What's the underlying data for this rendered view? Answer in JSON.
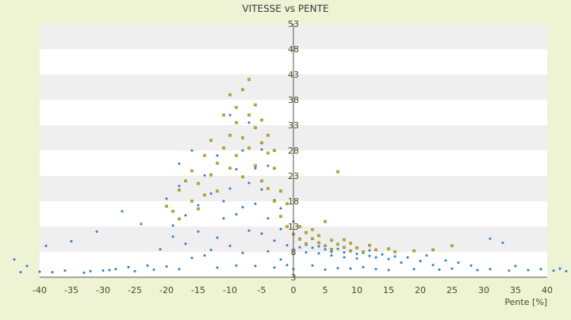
{
  "chart_data": {
    "type": "scatter",
    "title": "VITESSE vs PENTE",
    "xlabel": "Pente [%]",
    "ylabel": "",
    "xlim": [
      -40,
      40
    ],
    "ylim": [
      3,
      53
    ],
    "x_ticks": [
      -40,
      -35,
      -30,
      -25,
      -20,
      -15,
      -10,
      -5,
      0,
      5,
      10,
      15,
      20,
      25,
      30,
      35,
      40
    ],
    "y_ticks": [
      3,
      8,
      13,
      18,
      23,
      28,
      33,
      38,
      43,
      48,
      53
    ],
    "grid": "horizontal bands",
    "legend": "none",
    "colors": {
      "background": "#eef3d4",
      "plot_band_light": "#ffffff",
      "plot_band_dark": "#efefef",
      "series_blue": "#1e7fd6",
      "series_olive": "#c8b400",
      "axis": "#555555",
      "text": "#4a4a1a"
    },
    "series": [
      {
        "color": "#1e7fd6",
        "points": [
          [
            -44,
            6.5
          ],
          [
            -43,
            4.0
          ],
          [
            -42,
            5.2
          ],
          [
            -40,
            4.1
          ],
          [
            -39,
            9.2
          ],
          [
            -38,
            4.0
          ],
          [
            -36,
            4.3
          ],
          [
            -35,
            10.1
          ],
          [
            -33,
            3.9
          ],
          [
            -32,
            4.2
          ],
          [
            -31,
            12.0
          ],
          [
            -30,
            4.3
          ],
          [
            -29,
            4.4
          ],
          [
            -28,
            4.6
          ],
          [
            -27,
            16.0
          ],
          [
            -26,
            5.0
          ],
          [
            -25,
            4.2
          ],
          [
            -24,
            13.5
          ],
          [
            -23,
            5.3
          ],
          [
            -22,
            4.5
          ],
          [
            -21,
            8.5
          ],
          [
            -20,
            18.5
          ],
          [
            -20,
            5.1
          ],
          [
            -19,
            11.0
          ],
          [
            -19,
            13.2
          ],
          [
            -18,
            4.6
          ],
          [
            -18,
            21.0
          ],
          [
            -18,
            25.4
          ],
          [
            -17,
            15.2
          ],
          [
            -17,
            9.6
          ],
          [
            -16,
            6.8
          ],
          [
            -16,
            28.0
          ],
          [
            -15,
            17.2
          ],
          [
            -15,
            12.0
          ],
          [
            -14,
            23.1
          ],
          [
            -14,
            7.3
          ],
          [
            -13,
            8.4
          ],
          [
            -13,
            19.5
          ],
          [
            -12,
            10.8
          ],
          [
            -12,
            4.9
          ],
          [
            -12,
            27.0
          ],
          [
            -11,
            14.6
          ],
          [
            -11,
            18.0
          ],
          [
            -10,
            20.5
          ],
          [
            -10,
            9.2
          ],
          [
            -10,
            35.0
          ],
          [
            -9,
            5.3
          ],
          [
            -9,
            15.4
          ],
          [
            -9,
            24.3
          ],
          [
            -8,
            28.0
          ],
          [
            -8,
            7.8
          ],
          [
            -8,
            16.8
          ],
          [
            -7,
            12.2
          ],
          [
            -7,
            21.6
          ],
          [
            -7,
            33.5
          ],
          [
            -6,
            24.5
          ],
          [
            -6,
            5.2
          ],
          [
            -6,
            17.5
          ],
          [
            -5,
            11.6
          ],
          [
            -5,
            20.3
          ],
          [
            -5,
            28.2
          ],
          [
            -4,
            8.1
          ],
          [
            -4,
            14.6
          ],
          [
            -4,
            25.0
          ],
          [
            -3,
            4.9
          ],
          [
            -3,
            10.2
          ],
          [
            -3,
            18.2
          ],
          [
            -2,
            6.5
          ],
          [
            -2,
            12.5
          ],
          [
            -2,
            16.6
          ],
          [
            -1,
            5.4
          ],
          [
            -1,
            9.3
          ],
          [
            0,
            4.6
          ],
          [
            0,
            14.0
          ],
          [
            1,
            8.9
          ],
          [
            1,
            10.6
          ],
          [
            2,
            9.4
          ],
          [
            2,
            7.9
          ],
          [
            3,
            8.8
          ],
          [
            3,
            5.3
          ],
          [
            4,
            9.1
          ],
          [
            4,
            7.7
          ],
          [
            5,
            8.5
          ],
          [
            5,
            4.5
          ],
          [
            6,
            8.0
          ],
          [
            6,
            7.3
          ],
          [
            7,
            8.6
          ],
          [
            7,
            4.8
          ],
          [
            8,
            7.9
          ],
          [
            8,
            6.9
          ],
          [
            9,
            8.1
          ],
          [
            9,
            4.7
          ],
          [
            10,
            7.6
          ],
          [
            10,
            6.7
          ],
          [
            11,
            7.8
          ],
          [
            11,
            5.0
          ],
          [
            12,
            7.2
          ],
          [
            12,
            8.3
          ],
          [
            13,
            6.9
          ],
          [
            13,
            4.6
          ],
          [
            14,
            7.5
          ],
          [
            15,
            6.6
          ],
          [
            15,
            4.4
          ],
          [
            16,
            7.1
          ],
          [
            17,
            5.9
          ],
          [
            18,
            6.9
          ],
          [
            19,
            4.6
          ],
          [
            20,
            6.2
          ],
          [
            21,
            7.3
          ],
          [
            22,
            5.4
          ],
          [
            23,
            4.5
          ],
          [
            24,
            6.3
          ],
          [
            25,
            4.7
          ],
          [
            26,
            5.9
          ],
          [
            28,
            5.3
          ],
          [
            29,
            4.4
          ],
          [
            31,
            10.6
          ],
          [
            31,
            4.6
          ],
          [
            33,
            9.8
          ],
          [
            34,
            4.3
          ],
          [
            35,
            5.2
          ],
          [
            37,
            4.4
          ],
          [
            39,
            4.6
          ],
          [
            41,
            4.3
          ],
          [
            42,
            4.7
          ],
          [
            43,
            4.2
          ]
        ]
      },
      {
        "color": "#c8b400",
        "points": [
          [
            -20,
            17.0
          ],
          [
            -19,
            16.0
          ],
          [
            -18,
            20.2
          ],
          [
            -18,
            14.5
          ],
          [
            -17,
            22.0
          ],
          [
            -16,
            18.0
          ],
          [
            -16,
            24.0
          ],
          [
            -15,
            21.5
          ],
          [
            -15,
            16.5
          ],
          [
            -14,
            27.0
          ],
          [
            -14,
            19.2
          ],
          [
            -13,
            23.2
          ],
          [
            -13,
            30.0
          ],
          [
            -12,
            25.5
          ],
          [
            -12,
            20.0
          ],
          [
            -11,
            28.5
          ],
          [
            -11,
            35.0
          ],
          [
            -10,
            31.0
          ],
          [
            -10,
            24.5
          ],
          [
            -10,
            39.0
          ],
          [
            -9,
            33.5
          ],
          [
            -9,
            27.0
          ],
          [
            -9,
            36.5
          ],
          [
            -8,
            30.5
          ],
          [
            -8,
            40.0
          ],
          [
            -8,
            22.8
          ],
          [
            -7,
            35.0
          ],
          [
            -7,
            28.5
          ],
          [
            -7,
            42.0
          ],
          [
            -6,
            32.5
          ],
          [
            -6,
            25.0
          ],
          [
            -6,
            37.0
          ],
          [
            -5,
            29.5
          ],
          [
            -5,
            34.0
          ],
          [
            -5,
            22.0
          ],
          [
            -4,
            27.5
          ],
          [
            -4,
            31.0
          ],
          [
            -4,
            20.5
          ],
          [
            -3,
            24.5
          ],
          [
            -3,
            18.0
          ],
          [
            -3,
            28.0
          ],
          [
            -2,
            20.0
          ],
          [
            -2,
            15.0
          ],
          [
            -1,
            17.5
          ],
          [
            -1,
            13.0
          ],
          [
            0,
            11.5
          ],
          [
            1,
            13.0
          ],
          [
            1,
            10.5
          ],
          [
            2,
            11.8
          ],
          [
            2,
            9.6
          ],
          [
            3,
            10.6
          ],
          [
            3,
            12.4
          ],
          [
            4,
            9.8
          ],
          [
            4,
            11.2
          ],
          [
            5,
            14.0
          ],
          [
            5,
            9.2
          ],
          [
            6,
            10.3
          ],
          [
            6,
            8.5
          ],
          [
            7,
            9.5
          ],
          [
            7,
            23.8
          ],
          [
            8,
            8.9
          ],
          [
            8,
            10.4
          ],
          [
            9,
            8.2
          ],
          [
            9,
            9.7
          ],
          [
            10,
            8.8
          ],
          [
            11,
            8.0
          ],
          [
            12,
            9.3
          ],
          [
            13,
            8.4
          ],
          [
            15,
            8.6
          ],
          [
            16,
            8.0
          ],
          [
            19,
            8.2
          ],
          [
            22,
            8.4
          ],
          [
            25,
            9.2
          ]
        ]
      }
    ]
  }
}
